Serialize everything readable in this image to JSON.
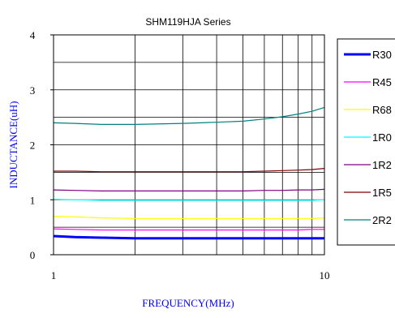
{
  "chart_data": {
    "type": "line",
    "title": "SHM119HJA Series",
    "xlabel": "FREQUENCY(MHz)",
    "ylabel": "INDUCTANCE(uH)",
    "x_scale": "log",
    "xlim": [
      1,
      10
    ],
    "ylim": [
      0,
      4
    ],
    "x_ticks": [
      1,
      10
    ],
    "x_tick_labels": [
      "1",
      "10"
    ],
    "y_ticks": [
      0,
      1,
      2,
      3,
      4
    ],
    "y_tick_labels": [
      "0",
      "1",
      "2",
      "3",
      "4"
    ],
    "y_minor_step": 0.5,
    "grid": true,
    "legend_position": "right",
    "x": [
      1,
      1.2,
      1.5,
      2,
      3,
      4,
      5,
      6,
      7,
      8,
      9,
      10
    ],
    "series": [
      {
        "name": "R30",
        "color": "#0000ff",
        "values": [
          0.34,
          0.32,
          0.31,
          0.3,
          0.3,
          0.3,
          0.3,
          0.3,
          0.3,
          0.3,
          0.3,
          0.3
        ]
      },
      {
        "name": "R45",
        "color": "#ff00ff",
        "values": [
          0.47,
          0.46,
          0.45,
          0.45,
          0.45,
          0.45,
          0.45,
          0.45,
          0.45,
          0.45,
          0.46,
          0.46
        ]
      },
      {
        "name": "R68",
        "color": "#ffff00",
        "values": [
          0.7,
          0.69,
          0.67,
          0.66,
          0.66,
          0.66,
          0.66,
          0.66,
          0.66,
          0.66,
          0.66,
          0.67
        ]
      },
      {
        "name": "1R0",
        "color": "#00ffff",
        "values": [
          1.01,
          1.0,
          0.99,
          0.99,
          0.99,
          0.99,
          0.99,
          0.99,
          0.99,
          0.99,
          0.99,
          1.0
        ]
      },
      {
        "name": "1R2",
        "color": "#800080",
        "values": [
          1.18,
          1.17,
          1.16,
          1.16,
          1.16,
          1.16,
          1.16,
          1.17,
          1.17,
          1.18,
          1.18,
          1.19
        ]
      },
      {
        "name": "1R5",
        "color": "#800000",
        "values": [
          1.52,
          1.52,
          1.51,
          1.51,
          1.51,
          1.51,
          1.51,
          1.52,
          1.53,
          1.54,
          1.55,
          1.57
        ]
      },
      {
        "name": "2R2",
        "color": "#008080",
        "values": [
          2.4,
          2.39,
          2.37,
          2.37,
          2.39,
          2.41,
          2.43,
          2.47,
          2.51,
          2.56,
          2.61,
          2.68
        ]
      }
    ]
  }
}
